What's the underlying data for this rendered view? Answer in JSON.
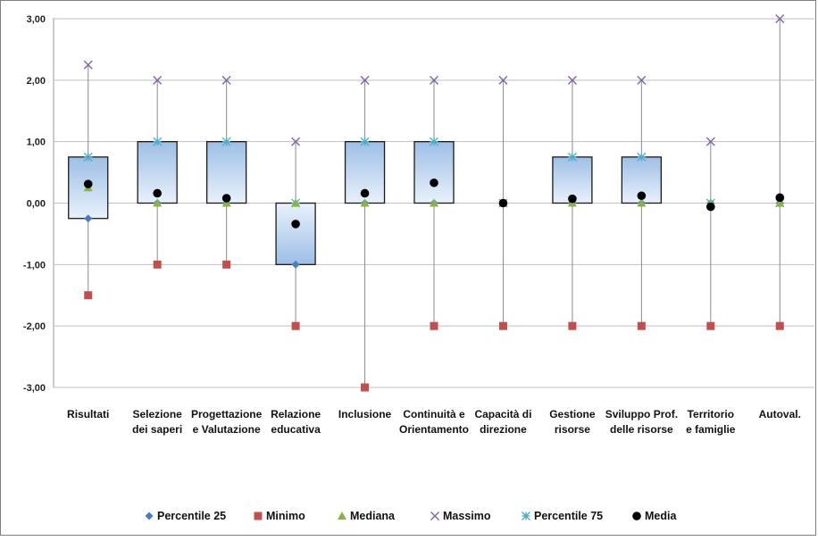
{
  "chart_data": {
    "type": "boxplot",
    "title": "",
    "xlabel": "",
    "ylabel": "",
    "ylim": [
      -3,
      3
    ],
    "y_tick_labels": [
      "3,00",
      "2,00",
      "1,00",
      "0,00",
      "-1,00",
      "-2,00",
      "-3,00"
    ],
    "y_tick_values": [
      3,
      2,
      1,
      0,
      -1,
      -2,
      -3
    ],
    "grid": true,
    "legend_position": "bottom",
    "categories": [
      [
        "Risultati"
      ],
      [
        "Selezione",
        "dei saperi"
      ],
      [
        "Progettazione",
        "e Valutazione"
      ],
      [
        "Relazione",
        "educativa"
      ],
      [
        "Inclusione"
      ],
      [
        "Continuità  e",
        "Orientamento"
      ],
      [
        "Capacità di",
        "direzione"
      ],
      [
        "Gestione",
        "risorse"
      ],
      [
        "Sviluppo Prof.",
        "delle risorse"
      ],
      [
        "Territorio",
        "e famiglie"
      ],
      [
        "Autoval."
      ]
    ],
    "series": [
      {
        "name": "Percentile 25",
        "marker": "diamond",
        "color": "#4a7ebb",
        "values": [
          -0.25,
          0,
          0,
          -1,
          0,
          0,
          0,
          0,
          0,
          0,
          0
        ]
      },
      {
        "name": "Minimo",
        "marker": "square",
        "color": "#c0504d",
        "values": [
          -1.5,
          -1,
          -1,
          -2,
          -3,
          -2,
          -2,
          -2,
          -2,
          -2,
          -2
        ]
      },
      {
        "name": "Mediana",
        "marker": "triangle",
        "color": "#8cb04a",
        "values": [
          0.25,
          0,
          0,
          0,
          0,
          0,
          0,
          0,
          0,
          0,
          0
        ]
      },
      {
        "name": "Massimo",
        "marker": "x",
        "color": "#8064a2",
        "values": [
          2.25,
          2,
          2,
          1,
          2,
          2,
          2,
          2,
          2,
          1,
          3
        ]
      },
      {
        "name": "Percentile 75",
        "marker": "star",
        "color": "#4bacc6",
        "values": [
          0.75,
          1,
          1,
          0,
          1,
          1,
          0,
          0.75,
          0.75,
          0,
          0
        ]
      },
      {
        "name": "Media",
        "marker": "circle",
        "color": "#000000",
        "values": [
          0.31,
          0.16,
          0.08,
          -0.34,
          0.16,
          0.33,
          0,
          0.07,
          0.12,
          -0.06,
          0.09
        ]
      }
    ]
  }
}
